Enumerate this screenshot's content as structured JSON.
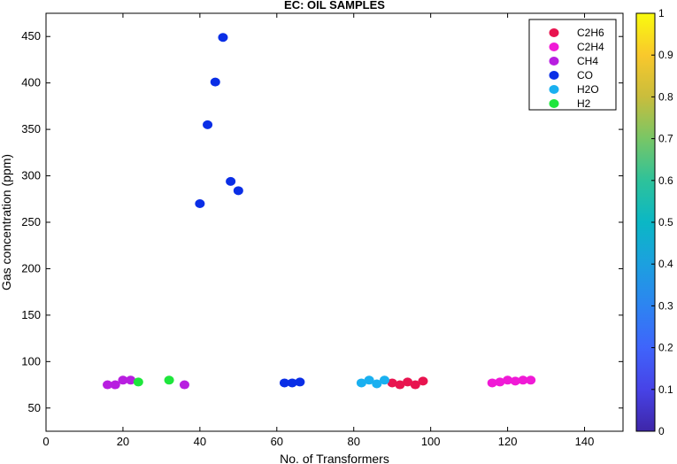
{
  "chart_data": {
    "type": "scatter",
    "title": "EC: OIL SAMPLES",
    "xlabel": "No. of Transformers",
    "ylabel": "Gas concentration (ppm)",
    "xlim": [
      0,
      150
    ],
    "ylim": [
      25,
      475
    ],
    "xticks": [
      0,
      20,
      40,
      60,
      80,
      100,
      120,
      140
    ],
    "yticks": [
      50,
      100,
      150,
      200,
      250,
      300,
      350,
      400,
      450
    ],
    "grid": false,
    "legend_position": "top-right",
    "series": [
      {
        "name": "C2H6",
        "color": "#e8144f",
        "x": [
          90,
          92,
          94,
          96,
          98
        ],
        "y": [
          77,
          75,
          78,
          75,
          79
        ]
      },
      {
        "name": "C2H4",
        "color": "#f01ad6",
        "x": [
          116,
          118,
          120,
          122,
          124,
          126
        ],
        "y": [
          77,
          78,
          80,
          79,
          80,
          80
        ]
      },
      {
        "name": "CH4",
        "color": "#b81ee0",
        "x": [
          16,
          18,
          20,
          22,
          36
        ],
        "y": [
          75,
          75,
          80,
          80,
          75
        ]
      },
      {
        "name": "CO",
        "color": "#0a2ee6",
        "x": [
          40,
          42,
          44,
          46,
          48,
          50,
          62,
          64,
          66
        ],
        "y": [
          270,
          355,
          401,
          449,
          294,
          284,
          77,
          77,
          78
        ]
      },
      {
        "name": "H2O",
        "color": "#1ab0f0",
        "x": [
          82,
          84,
          86,
          88
        ],
        "y": [
          77,
          80,
          76,
          80
        ]
      },
      {
        "name": "H2",
        "color": "#1ee63c",
        "x": [
          24,
          32
        ],
        "y": [
          78,
          80
        ]
      }
    ],
    "colorbar": {
      "range": [
        0,
        1
      ],
      "ticks": [
        "0",
        "0.1",
        "0.2",
        "0.3",
        "0.4",
        "0.5",
        "0.6",
        "0.7",
        "0.8",
        "0.9",
        "1"
      ],
      "colormap": "parula"
    }
  }
}
